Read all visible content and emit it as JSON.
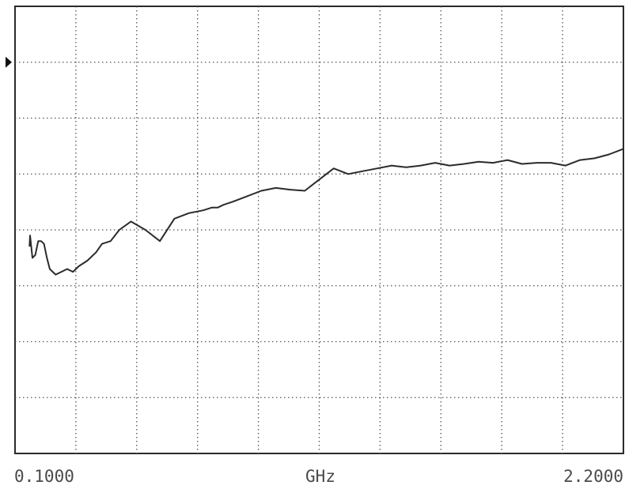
{
  "chart_data": {
    "type": "line",
    "x_axis": {
      "start_label": "0.1000",
      "center_label": "GHz",
      "stop_label": "2.2000",
      "range": [
        0.1,
        2.2
      ]
    },
    "y_axis": {
      "range": [
        0,
        8
      ],
      "divisions": 8
    },
    "grid": true,
    "grid_divisions_x": 10,
    "reference_marker": {
      "level": 7
    },
    "series": [
      {
        "color": "#2b2b2b",
        "x": [
          0.15,
          0.152,
          0.16,
          0.17,
          0.18,
          0.19,
          0.2,
          0.21,
          0.22,
          0.24,
          0.26,
          0.28,
          0.3,
          0.32,
          0.35,
          0.38,
          0.4,
          0.43,
          0.46,
          0.5,
          0.55,
          0.6,
          0.65,
          0.7,
          0.75,
          0.78,
          0.8,
          0.82,
          0.85,
          0.9,
          0.95,
          1.0,
          1.05,
          1.1,
          1.15,
          1.2,
          1.25,
          1.3,
          1.35,
          1.4,
          1.45,
          1.5,
          1.55,
          1.6,
          1.65,
          1.7,
          1.75,
          1.8,
          1.85,
          1.9,
          1.95,
          2.0,
          2.05,
          2.1,
          2.15,
          2.2
        ],
        "values": [
          3.7,
          3.9,
          3.5,
          3.55,
          3.8,
          3.8,
          3.75,
          3.5,
          3.3,
          3.2,
          3.25,
          3.3,
          3.25,
          3.35,
          3.45,
          3.6,
          3.75,
          3.8,
          4.0,
          4.15,
          4.0,
          3.8,
          4.2,
          4.3,
          4.35,
          4.4,
          4.4,
          4.45,
          4.5,
          4.6,
          4.7,
          4.75,
          4.72,
          4.7,
          4.9,
          5.1,
          5.0,
          5.05,
          5.1,
          5.15,
          5.12,
          5.15,
          5.2,
          5.15,
          5.18,
          5.22,
          5.2,
          5.25,
          5.18,
          5.2,
          5.2,
          5.15,
          5.25,
          5.28,
          5.35,
          5.45
        ]
      }
    ]
  }
}
